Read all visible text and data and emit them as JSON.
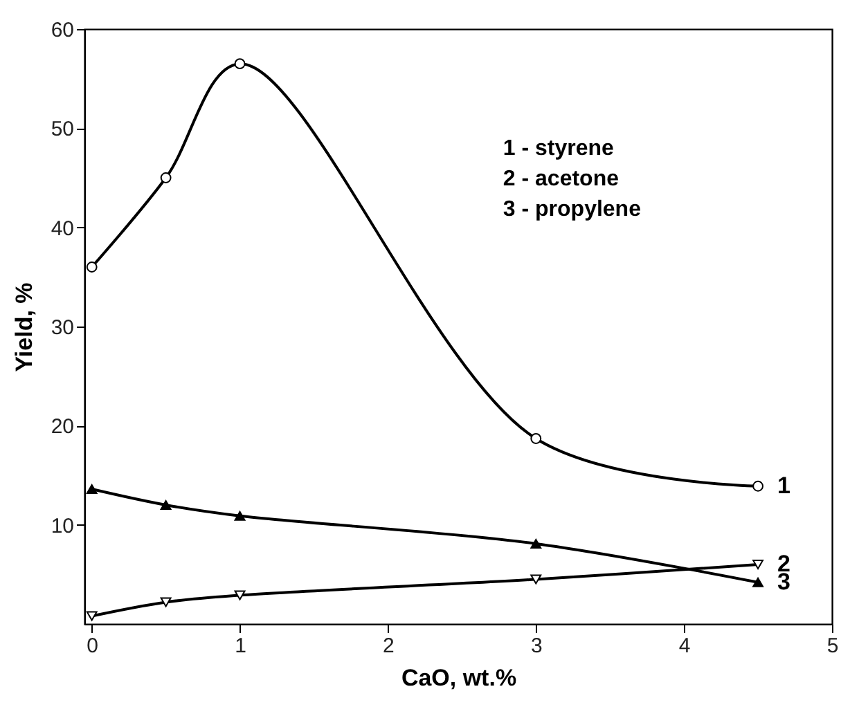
{
  "chart_data": {
    "type": "line",
    "xlabel": "CaO, wt.%",
    "ylabel": "Yield, %",
    "x": [
      0,
      0.5,
      1,
      3,
      4.5
    ],
    "series": [
      {
        "name": "1",
        "color": "#000000",
        "marker": "circle",
        "values": [
          36.0,
          45.0,
          56.5,
          18.7,
          13.9
        ]
      },
      {
        "name": "2",
        "color": "#000000",
        "marker": "triangle-down",
        "values": [
          0.8,
          2.2,
          2.9,
          4.5,
          6.0
        ]
      },
      {
        "name": "3",
        "color": "#000000",
        "marker": "triangle",
        "values": [
          13.6,
          12.0,
          10.9,
          8.1,
          4.2
        ]
      }
    ],
    "xlim": [
      -0.05,
      5
    ],
    "xticks": [
      0,
      1,
      2,
      3,
      4,
      5
    ],
    "ylim": [
      0,
      60
    ],
    "yticks": [
      10,
      20,
      30,
      40,
      50,
      60
    ],
    "grid": false,
    "line_style": "solid",
    "annotations": [
      "1 - styrene",
      "2 - acetone",
      "3 - propylene"
    ]
  }
}
